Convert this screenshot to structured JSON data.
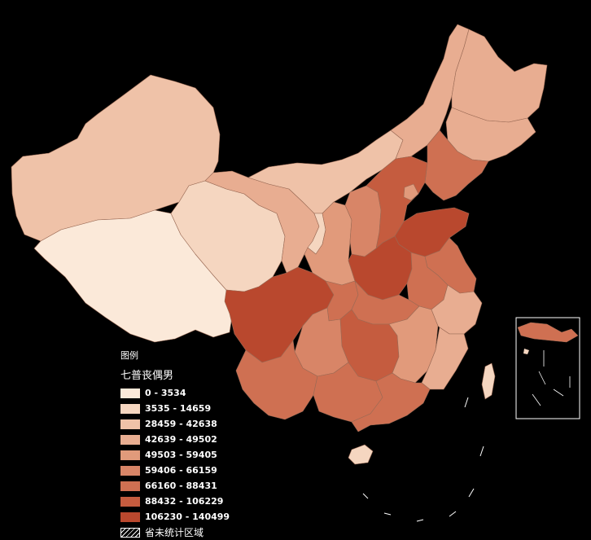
{
  "legend": {
    "heading": "图例",
    "title": "七普丧偶男",
    "classes": [
      {
        "label": "0 - 3534",
        "color": "#fbe9d9"
      },
      {
        "label": "3535 - 14659",
        "color": "#f5d6c0"
      },
      {
        "label": "28459 - 42638",
        "color": "#efc2a8"
      },
      {
        "label": "42639 - 49502",
        "color": "#e8ad91"
      },
      {
        "label": "49503 - 59405",
        "color": "#e19a7b"
      },
      {
        "label": "59406 - 66159",
        "color": "#d88567"
      },
      {
        "label": "66160 - 88431",
        "color": "#cf7052"
      },
      {
        "label": "88432 - 106229",
        "color": "#c55c3f"
      },
      {
        "label": "106230 - 140499",
        "color": "#b9482e"
      }
    ],
    "no_data_label": "省未统计区域"
  },
  "regions": [
    {
      "name": "xinjiang",
      "class": 2
    },
    {
      "name": "xizang",
      "class": 0
    },
    {
      "name": "qinghai",
      "class": 1
    },
    {
      "name": "gansu",
      "class": 3
    },
    {
      "name": "neimenggu-west",
      "class": 2
    },
    {
      "name": "neimenggu-east",
      "class": 3
    },
    {
      "name": "heilongjiang",
      "class": 3
    },
    {
      "name": "jilin",
      "class": 3
    },
    {
      "name": "liaoning",
      "class": 6
    },
    {
      "name": "ningxia",
      "class": 1
    },
    {
      "name": "shaanxi",
      "class": 4
    },
    {
      "name": "shanxi",
      "class": 5
    },
    {
      "name": "hebei",
      "class": 7
    },
    {
      "name": "beijing",
      "class": 4
    },
    {
      "name": "shandong",
      "class": 8
    },
    {
      "name": "henan",
      "class": 8
    },
    {
      "name": "jiangsu",
      "class": 6
    },
    {
      "name": "anhui",
      "class": 6
    },
    {
      "name": "sichuan",
      "class": 8
    },
    {
      "name": "chongqing",
      "class": 6
    },
    {
      "name": "hubei",
      "class": 6
    },
    {
      "name": "hunan",
      "class": 7
    },
    {
      "name": "jiangxi",
      "class": 4
    },
    {
      "name": "zhejiang",
      "class": 3
    },
    {
      "name": "fujian",
      "class": 3
    },
    {
      "name": "guizhou",
      "class": 5
    },
    {
      "name": "yunnan",
      "class": 6
    },
    {
      "name": "guangxi",
      "class": 6
    },
    {
      "name": "guangdong",
      "class": 6
    },
    {
      "name": "hainan",
      "class": 1
    },
    {
      "name": "taiwan",
      "class": 1
    }
  ]
}
